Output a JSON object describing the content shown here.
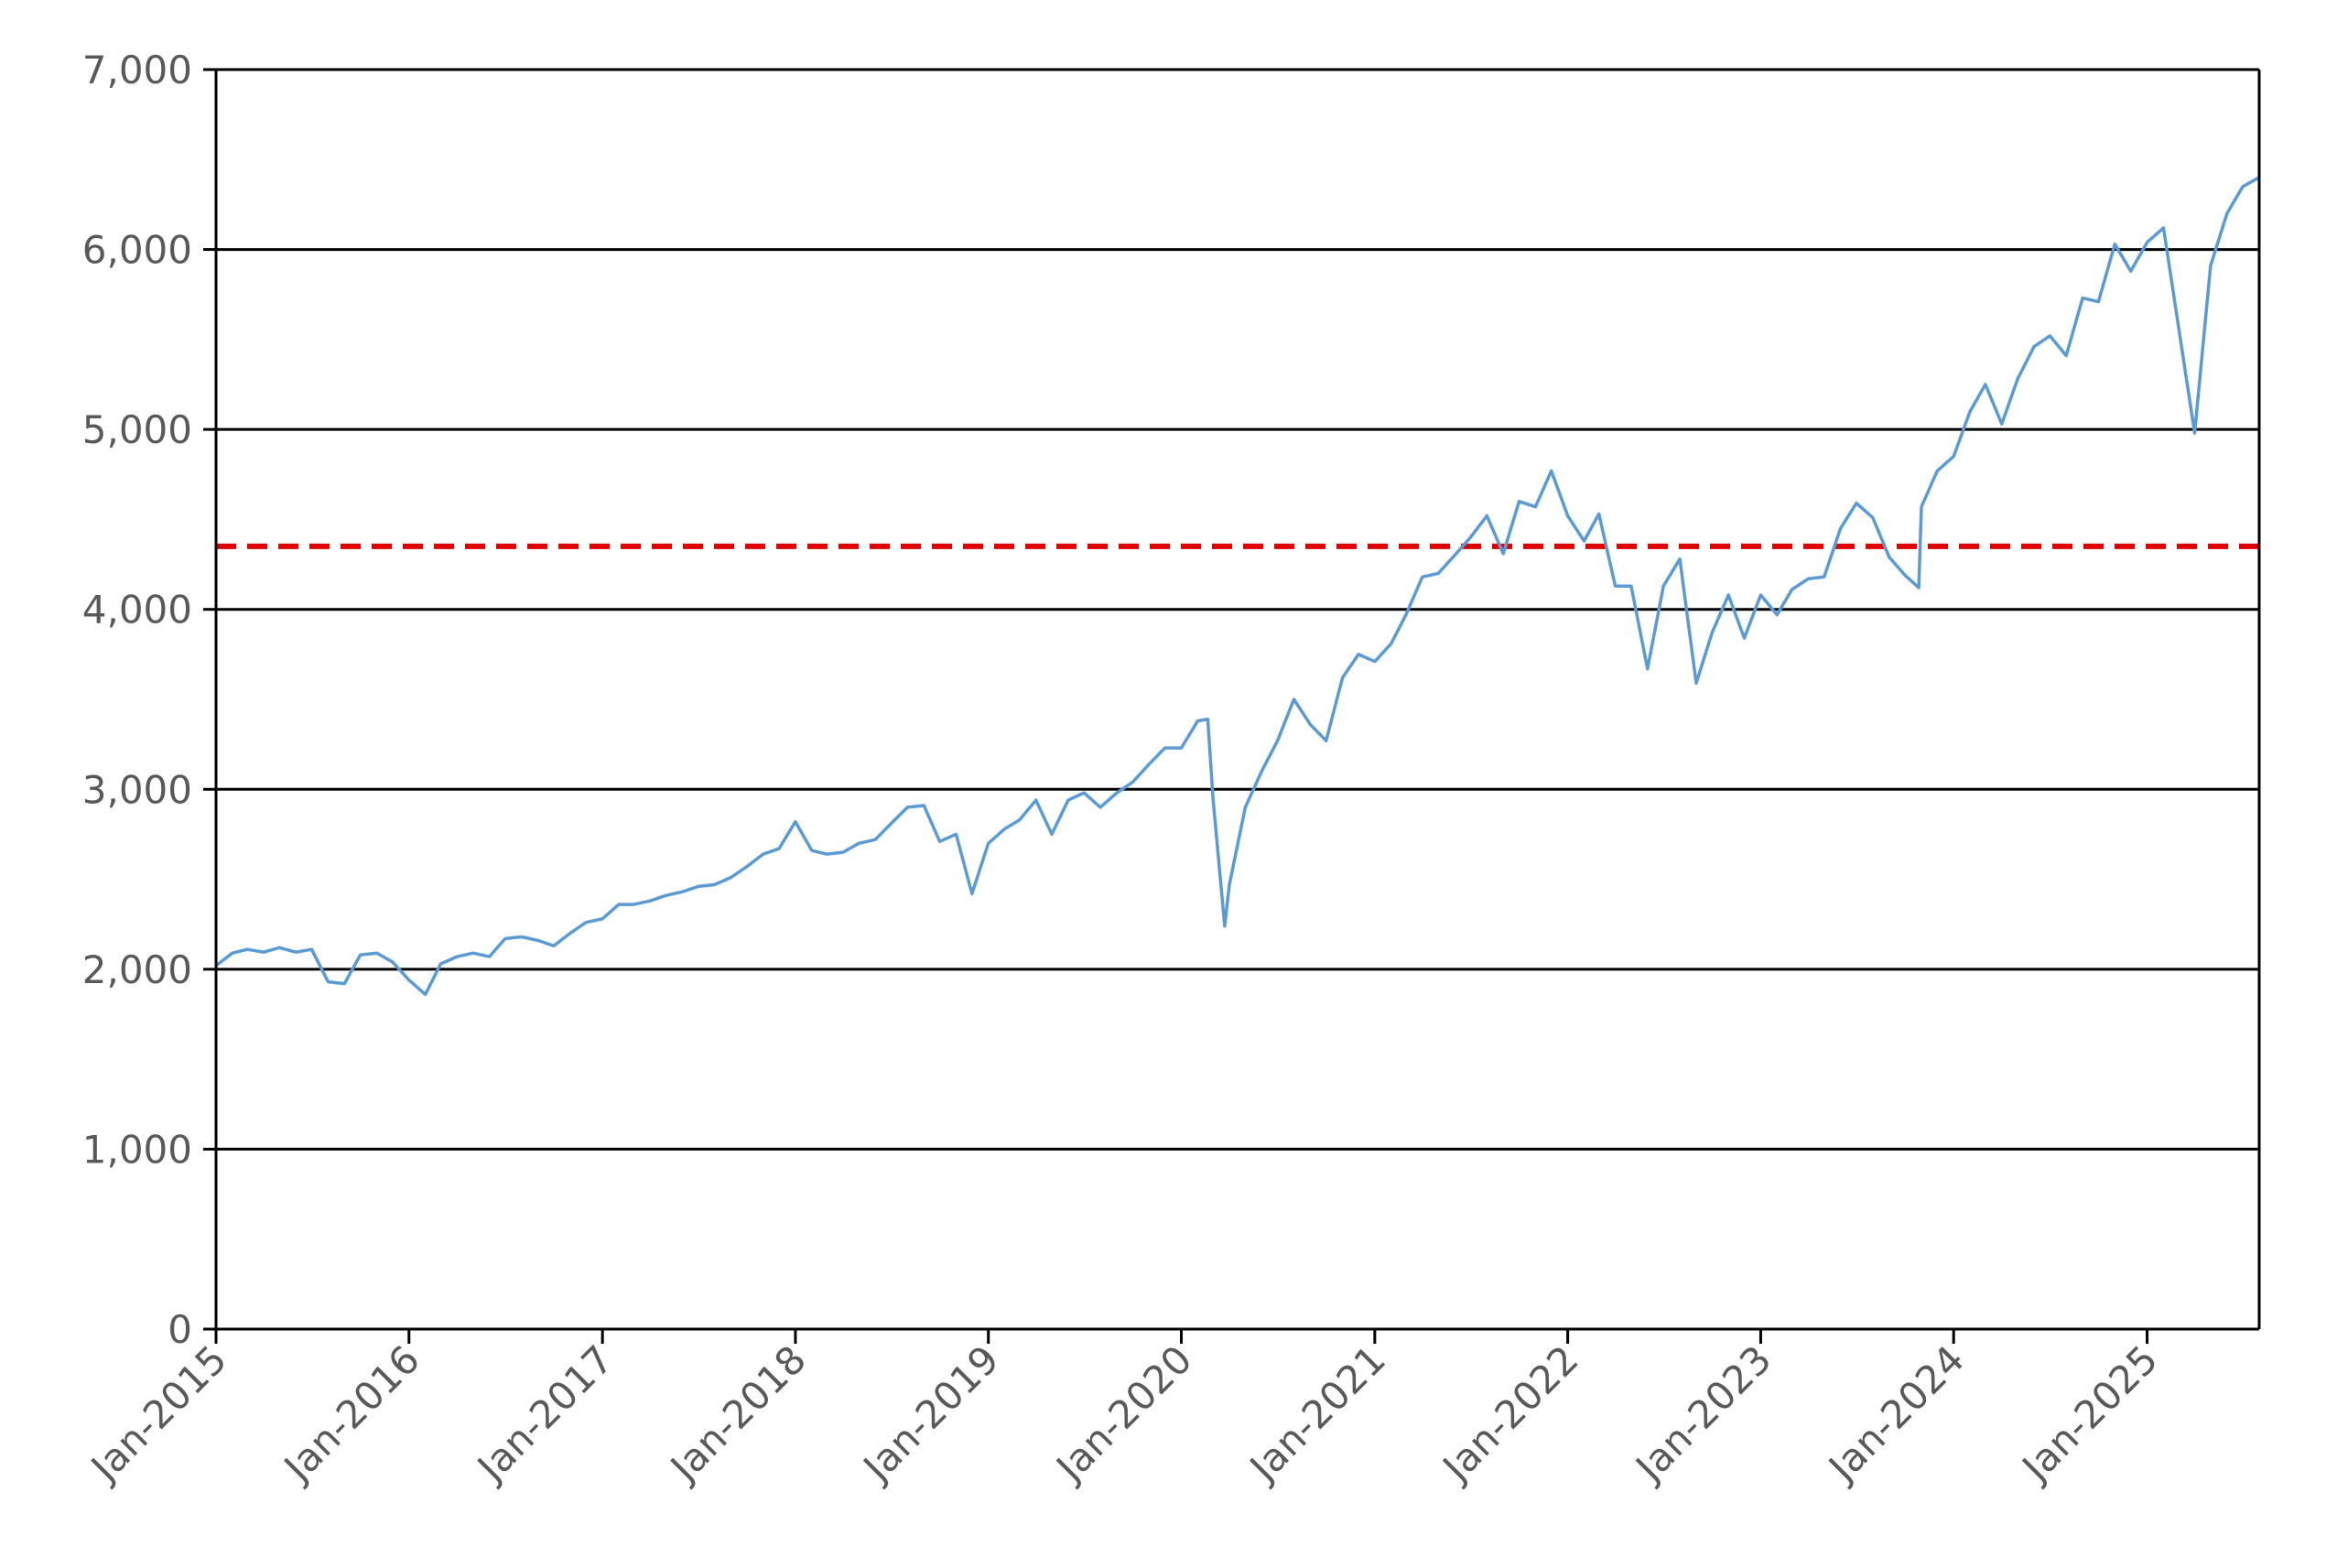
{
  "chart_data": {
    "type": "line",
    "title": "",
    "xlabel": "",
    "ylabel": "",
    "x_range": [
      "2015-01-01",
      "2025-08-01"
    ],
    "ylim": [
      0,
      7000
    ],
    "y_ticks": [
      0,
      1000,
      2000,
      3000,
      4000,
      5000,
      6000,
      7000
    ],
    "y_tick_labels": [
      "0",
      "1,000",
      "2,000",
      "3,000",
      "4,000",
      "5,000",
      "6,000",
      "7,000"
    ],
    "x_tick_labels": [
      "Jan-2015",
      "Jan-2016",
      "Jan-2017",
      "Jan-2018",
      "Jan-2019",
      "Jan-2020",
      "Jan-2021",
      "Jan-2022",
      "Jan-2023",
      "Jan-2024",
      "Jan-2025"
    ],
    "grid": "horizontal",
    "legend": "none",
    "series": [
      {
        "color": "#5B9BD5",
        "points": [
          [
            "2015-01-01",
            2020
          ],
          [
            "2015-02-01",
            2090
          ],
          [
            "2015-03-01",
            2110
          ],
          [
            "2015-04-01",
            2095
          ],
          [
            "2015-05-01",
            2120
          ],
          [
            "2015-06-01",
            2095
          ],
          [
            "2015-07-01",
            2110
          ],
          [
            "2015-08-01",
            1930
          ],
          [
            "2015-09-01",
            1920
          ],
          [
            "2015-10-01",
            2080
          ],
          [
            "2015-11-01",
            2090
          ],
          [
            "2015-12-01",
            2040
          ],
          [
            "2016-01-01",
            1940
          ],
          [
            "2016-02-01",
            1860
          ],
          [
            "2016-03-01",
            2030
          ],
          [
            "2016-04-01",
            2070
          ],
          [
            "2016-05-01",
            2090
          ],
          [
            "2016-06-01",
            2070
          ],
          [
            "2016-07-01",
            2170
          ],
          [
            "2016-08-01",
            2180
          ],
          [
            "2016-09-01",
            2160
          ],
          [
            "2016-10-01",
            2130
          ],
          [
            "2016-11-01",
            2200
          ],
          [
            "2016-12-01",
            2260
          ],
          [
            "2017-01-01",
            2280
          ],
          [
            "2017-02-01",
            2360
          ],
          [
            "2017-03-01",
            2360
          ],
          [
            "2017-04-01",
            2380
          ],
          [
            "2017-05-01",
            2410
          ],
          [
            "2017-06-01",
            2430
          ],
          [
            "2017-07-01",
            2460
          ],
          [
            "2017-08-01",
            2470
          ],
          [
            "2017-09-01",
            2510
          ],
          [
            "2017-10-01",
            2570
          ],
          [
            "2017-11-01",
            2640
          ],
          [
            "2017-12-01",
            2670
          ],
          [
            "2018-01-01",
            2820
          ],
          [
            "2018-02-01",
            2660
          ],
          [
            "2018-03-01",
            2640
          ],
          [
            "2018-04-01",
            2650
          ],
          [
            "2018-05-01",
            2700
          ],
          [
            "2018-06-01",
            2720
          ],
          [
            "2018-07-01",
            2810
          ],
          [
            "2018-08-01",
            2900
          ],
          [
            "2018-09-01",
            2910
          ],
          [
            "2018-10-01",
            2710
          ],
          [
            "2018-11-01",
            2750
          ],
          [
            "2018-12-01",
            2420
          ],
          [
            "2019-01-01",
            2700
          ],
          [
            "2019-02-01",
            2780
          ],
          [
            "2019-03-01",
            2830
          ],
          [
            "2019-04-01",
            2940
          ],
          [
            "2019-05-01",
            2750
          ],
          [
            "2019-06-01",
            2940
          ],
          [
            "2019-07-01",
            2980
          ],
          [
            "2019-08-01",
            2900
          ],
          [
            "2019-09-01",
            2980
          ],
          [
            "2019-10-01",
            3040
          ],
          [
            "2019-11-01",
            3140
          ],
          [
            "2019-12-01",
            3230
          ],
          [
            "2020-01-01",
            3230
          ],
          [
            "2020-02-01",
            3380
          ],
          [
            "2020-02-20",
            3390
          ],
          [
            "2020-03-01",
            2950
          ],
          [
            "2020-03-23",
            2240
          ],
          [
            "2020-04-01",
            2470
          ],
          [
            "2020-05-01",
            2900
          ],
          [
            "2020-06-01",
            3100
          ],
          [
            "2020-07-01",
            3270
          ],
          [
            "2020-08-01",
            3500
          ],
          [
            "2020-09-01",
            3360
          ],
          [
            "2020-10-01",
            3270
          ],
          [
            "2020-11-01",
            3620
          ],
          [
            "2020-12-01",
            3750
          ],
          [
            "2021-01-01",
            3710
          ],
          [
            "2021-02-01",
            3810
          ],
          [
            "2021-03-01",
            3970
          ],
          [
            "2021-04-01",
            4180
          ],
          [
            "2021-05-01",
            4200
          ],
          [
            "2021-06-01",
            4300
          ],
          [
            "2021-07-01",
            4400
          ],
          [
            "2021-08-01",
            4520
          ],
          [
            "2021-09-01",
            4310
          ],
          [
            "2021-10-01",
            4600
          ],
          [
            "2021-11-01",
            4570
          ],
          [
            "2021-12-01",
            4770
          ],
          [
            "2022-01-01",
            4520
          ],
          [
            "2022-02-01",
            4380
          ],
          [
            "2022-03-01",
            4530
          ],
          [
            "2022-04-01",
            4130
          ],
          [
            "2022-05-01",
            4130
          ],
          [
            "2022-06-01",
            3670
          ],
          [
            "2022-07-01",
            4130
          ],
          [
            "2022-08-01",
            4280
          ],
          [
            "2022-09-01",
            3590
          ],
          [
            "2022-10-01",
            3870
          ],
          [
            "2022-11-01",
            4080
          ],
          [
            "2022-12-01",
            3840
          ],
          [
            "2023-01-01",
            4080
          ],
          [
            "2023-02-01",
            3970
          ],
          [
            "2023-03-01",
            4110
          ],
          [
            "2023-04-01",
            4170
          ],
          [
            "2023-05-01",
            4180
          ],
          [
            "2023-06-01",
            4450
          ],
          [
            "2023-07-01",
            4590
          ],
          [
            "2023-08-01",
            4510
          ],
          [
            "2023-09-01",
            4290
          ],
          [
            "2023-10-01",
            4190
          ],
          [
            "2023-10-27",
            4120
          ],
          [
            "2023-11-01",
            4570
          ],
          [
            "2023-12-01",
            4770
          ],
          [
            "2024-01-01",
            4850
          ],
          [
            "2024-02-01",
            5100
          ],
          [
            "2024-03-01",
            5250
          ],
          [
            "2024-04-01",
            5030
          ],
          [
            "2024-05-01",
            5280
          ],
          [
            "2024-06-01",
            5460
          ],
          [
            "2024-07-01",
            5520
          ],
          [
            "2024-08-01",
            5410
          ],
          [
            "2024-09-01",
            5730
          ],
          [
            "2024-10-01",
            5710
          ],
          [
            "2024-11-01",
            6030
          ],
          [
            "2024-12-01",
            5880
          ],
          [
            "2025-01-01",
            6040
          ],
          [
            "2025-02-01",
            6120
          ],
          [
            "2025-03-01",
            5580
          ],
          [
            "2025-04-01",
            4980
          ],
          [
            "2025-05-01",
            5910
          ],
          [
            "2025-06-01",
            6200
          ],
          [
            "2025-07-01",
            6350
          ],
          [
            "2025-08-01",
            6400
          ]
        ]
      }
    ],
    "reference_line": {
      "y": 4350,
      "color": "#E00000",
      "style": "dashed"
    }
  }
}
